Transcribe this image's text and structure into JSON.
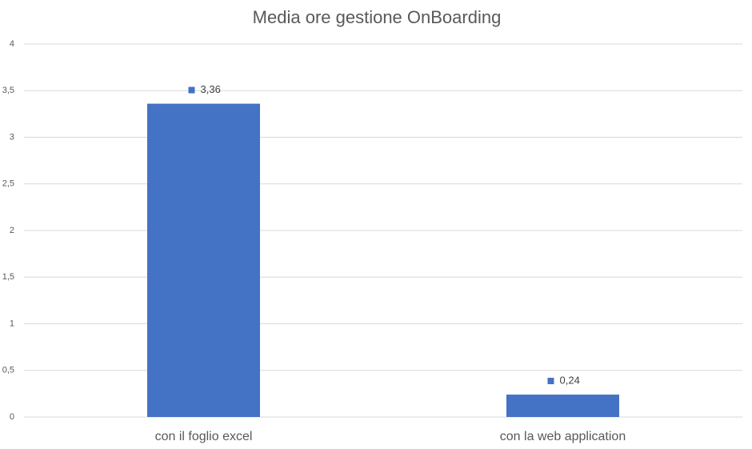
{
  "chart_data": {
    "type": "bar",
    "title": "Media ore gestione OnBoarding",
    "categories": [
      "con il foglio excel",
      "con la web application"
    ],
    "values": [
      3.36,
      0.24
    ],
    "value_labels": [
      "3,36",
      "0,24"
    ],
    "color": "#4472c4",
    "ylim": [
      0,
      4
    ],
    "yticks": [
      0,
      {
        "value": 0.5,
        "label": "0,5"
      },
      1,
      {
        "value": 1.5,
        "label": "1,5"
      },
      2,
      {
        "value": 2.5,
        "label": "2,5"
      },
      3,
      {
        "value": 3.5,
        "label": "3,5"
      },
      4
    ],
    "grid": true
  }
}
